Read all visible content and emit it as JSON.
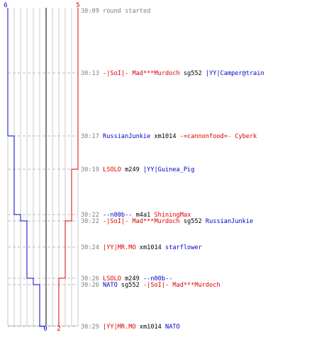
{
  "timeline": {
    "blue_count_start": "6",
    "red_count_start": "5",
    "blue_count_end": "0",
    "red_count_end": "2",
    "lanes": 11,
    "colors": {
      "blue": "#0000c8",
      "red": "#dc0000",
      "grid": "#c8c8c8",
      "center": "#555555",
      "dash": "#bbbbbb",
      "time": "#808080",
      "weapon": "#000000"
    },
    "blue_steps": [
      6,
      6,
      5,
      5,
      4,
      3,
      3,
      2,
      1,
      0
    ],
    "red_steps": [
      5,
      5,
      5,
      4,
      4,
      3,
      3,
      2,
      2,
      2
    ]
  },
  "events": [
    {
      "time": "30:09",
      "parts": [
        {
          "text": "round started",
          "color": "#808080"
        }
      ]
    },
    {
      "time": "30:13",
      "parts": [
        {
          "text": "-|SoI|- Mad***Murdoch",
          "color": "#dc0000"
        },
        {
          "text": "sg552",
          "color": "#000000"
        },
        {
          "text": "|YY|Camper@train",
          "color": "#0000c8"
        }
      ]
    },
    {
      "time": "30:17",
      "parts": [
        {
          "text": "RussianJunkie",
          "color": "#0000c8"
        },
        {
          "text": "xm1014",
          "color": "#000000"
        },
        {
          "text": "-=cannonfood=- Cyberk",
          "color": "#dc0000"
        }
      ]
    },
    {
      "time": "30:19",
      "parts": [
        {
          "text": "LSOLO",
          "color": "#dc0000"
        },
        {
          "text": "m249",
          "color": "#000000"
        },
        {
          "text": "|YY|Guinea_Pig",
          "color": "#0000c8"
        }
      ]
    },
    {
      "time": "30:22",
      "parts": [
        {
          "text": "--n00b--",
          "color": "#0000c8"
        },
        {
          "text": "m4a1",
          "color": "#000000"
        },
        {
          "text": "ShiningMax",
          "color": "#dc0000"
        }
      ]
    },
    {
      "time": "30:22",
      "parts": [
        {
          "text": "-|SoI|- Mad***Murdoch",
          "color": "#dc0000"
        },
        {
          "text": "sg552",
          "color": "#000000"
        },
        {
          "text": "RussianJunkie",
          "color": "#0000c8"
        }
      ]
    },
    {
      "time": "30:24",
      "parts": [
        {
          "text": "|YY|MR.MO",
          "color": "#dc0000"
        },
        {
          "text": "xm1014",
          "color": "#000000"
        },
        {
          "text": "starflower",
          "color": "#0000c8"
        }
      ]
    },
    {
      "time": "30:26",
      "parts": [
        {
          "text": "LSOLO",
          "color": "#dc0000"
        },
        {
          "text": "m249",
          "color": "#000000"
        },
        {
          "text": "--n00b--",
          "color": "#0000c8"
        }
      ]
    },
    {
      "time": "30:26",
      "parts": [
        {
          "text": "NATO",
          "color": "#0000c8"
        },
        {
          "text": "sg552",
          "color": "#000000"
        },
        {
          "text": "-|SoI|- Mad***Murdoch",
          "color": "#dc0000"
        }
      ]
    },
    {
      "time": "30:29",
      "parts": [
        {
          "text": "|YY|MR.MO",
          "color": "#dc0000"
        },
        {
          "text": "xm1014",
          "color": "#000000"
        },
        {
          "text": "NATO",
          "color": "#0000c8"
        }
      ]
    }
  ]
}
